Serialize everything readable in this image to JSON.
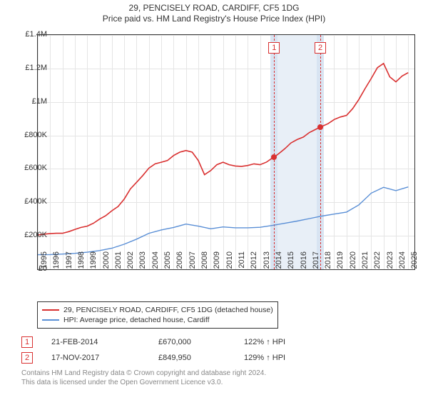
{
  "title": {
    "main": "29, PENCISELY ROAD, CARDIFF, CF5 1DG",
    "sub": "Price paid vs. HM Land Registry's House Price Index (HPI)"
  },
  "chart": {
    "type": "line",
    "background_color": "#ffffff",
    "grid_color": "#e5e5e5",
    "border_color": "#333333",
    "xlim": [
      1995,
      2025.5
    ],
    "ylim": [
      0,
      1400000
    ],
    "yticks": [
      0,
      200000,
      400000,
      600000,
      800000,
      1000000,
      1200000,
      1400000
    ],
    "ylabels": [
      "£0",
      "£200K",
      "£400K",
      "£600K",
      "£800K",
      "£1M",
      "£1.2M",
      "£1.4M"
    ],
    "xticks": [
      1995,
      1996,
      1997,
      1998,
      1999,
      2000,
      2001,
      2002,
      2003,
      2004,
      2005,
      2006,
      2007,
      2008,
      2009,
      2010,
      2011,
      2012,
      2013,
      2014,
      2015,
      2016,
      2017,
      2018,
      2019,
      2020,
      2021,
      2022,
      2023,
      2024,
      2025
    ],
    "shaded_region": {
      "from": 2014.14,
      "to": 2017.88,
      "color": "#e8eff7",
      "tx_band_color": "#d8e4f2"
    },
    "markers": [
      {
        "label": "1",
        "x": 2014.14,
        "y": 670000
      },
      {
        "label": "2",
        "x": 2017.88,
        "y": 849950
      }
    ],
    "series": [
      {
        "name": "29, PENCISELY ROAD, CARDIFF, CF5 1DG (detached house)",
        "color": "#d93030",
        "line_width": 1.6,
        "points": [
          [
            1995,
            205000
          ],
          [
            1995.5,
            210000
          ],
          [
            1996,
            213000
          ],
          [
            1996.5,
            215000
          ],
          [
            1997,
            215000
          ],
          [
            1997.5,
            225000
          ],
          [
            1998,
            238000
          ],
          [
            1998.5,
            250000
          ],
          [
            1999,
            258000
          ],
          [
            1999.5,
            275000
          ],
          [
            2000,
            300000
          ],
          [
            2000.5,
            320000
          ],
          [
            2001,
            350000
          ],
          [
            2001.5,
            375000
          ],
          [
            2002,
            420000
          ],
          [
            2002.5,
            480000
          ],
          [
            2003,
            520000
          ],
          [
            2003.5,
            560000
          ],
          [
            2004,
            605000
          ],
          [
            2004.5,
            630000
          ],
          [
            2005,
            640000
          ],
          [
            2005.5,
            650000
          ],
          [
            2006,
            680000
          ],
          [
            2006.5,
            700000
          ],
          [
            2007,
            710000
          ],
          [
            2007.5,
            700000
          ],
          [
            2008,
            650000
          ],
          [
            2008.5,
            565000
          ],
          [
            2009,
            590000
          ],
          [
            2009.5,
            625000
          ],
          [
            2010,
            640000
          ],
          [
            2010.5,
            625000
          ],
          [
            2011,
            617000
          ],
          [
            2011.5,
            615000
          ],
          [
            2012,
            620000
          ],
          [
            2012.5,
            630000
          ],
          [
            2013,
            625000
          ],
          [
            2013.5,
            640000
          ],
          [
            2014,
            665000
          ],
          [
            2014.14,
            670000
          ],
          [
            2014.5,
            690000
          ],
          [
            2015,
            720000
          ],
          [
            2015.5,
            755000
          ],
          [
            2016,
            775000
          ],
          [
            2016.5,
            790000
          ],
          [
            2017,
            818000
          ],
          [
            2017.5,
            836000
          ],
          [
            2017.88,
            849950
          ],
          [
            2018.5,
            870000
          ],
          [
            2019,
            895000
          ],
          [
            2019.5,
            910000
          ],
          [
            2020,
            920000
          ],
          [
            2020.5,
            960000
          ],
          [
            2021,
            1015000
          ],
          [
            2021.5,
            1080000
          ],
          [
            2022,
            1140000
          ],
          [
            2022.5,
            1205000
          ],
          [
            2023,
            1230000
          ],
          [
            2023.5,
            1150000
          ],
          [
            2024,
            1120000
          ],
          [
            2024.5,
            1155000
          ],
          [
            2025,
            1175000
          ]
        ]
      },
      {
        "name": "HPI: Average price, detached house, Cardiff",
        "color": "#5a8fd6",
        "line_width": 1.4,
        "points": [
          [
            1995,
            87000
          ],
          [
            1996,
            88000
          ],
          [
            1997,
            91000
          ],
          [
            1998,
            95000
          ],
          [
            1999,
            102000
          ],
          [
            2000,
            112000
          ],
          [
            2001,
            126000
          ],
          [
            2002,
            150000
          ],
          [
            2003,
            180000
          ],
          [
            2004,
            215000
          ],
          [
            2005,
            235000
          ],
          [
            2006,
            250000
          ],
          [
            2007,
            270000
          ],
          [
            2008,
            258000
          ],
          [
            2009,
            242000
          ],
          [
            2010,
            253000
          ],
          [
            2011,
            248000
          ],
          [
            2012,
            248000
          ],
          [
            2013,
            251000
          ],
          [
            2014,
            262000
          ],
          [
            2015,
            275000
          ],
          [
            2016,
            288000
          ],
          [
            2017,
            303000
          ],
          [
            2018,
            318000
          ],
          [
            2019,
            330000
          ],
          [
            2020,
            342000
          ],
          [
            2021,
            385000
          ],
          [
            2022,
            455000
          ],
          [
            2023,
            490000
          ],
          [
            2024,
            470000
          ],
          [
            2025,
            492000
          ]
        ]
      }
    ]
  },
  "legend": {
    "rows": [
      {
        "color": "#d93030",
        "label": "29, PENCISELY ROAD, CARDIFF, CF5 1DG (detached house)"
      },
      {
        "color": "#5a8fd6",
        "label": "HPI: Average price, detached house, Cardiff"
      }
    ]
  },
  "annotations": [
    {
      "label": "1",
      "date": "21-FEB-2014",
      "price": "£670,000",
      "pct": "122% ↑ HPI"
    },
    {
      "label": "2",
      "date": "17-NOV-2017",
      "price": "£849,950",
      "pct": "129% ↑ HPI"
    }
  ],
  "footnote": {
    "line1": "Contains HM Land Registry data © Crown copyright and database right 2024.",
    "line2": "This data is licensed under the Open Government Licence v3.0."
  }
}
